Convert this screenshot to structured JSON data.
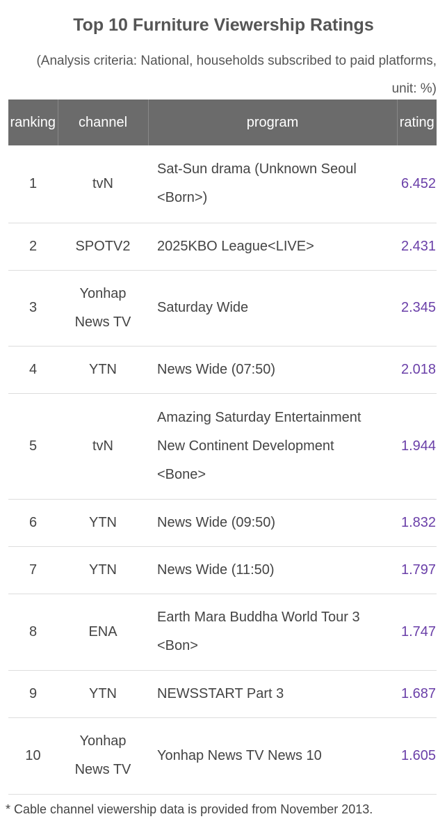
{
  "header": {
    "title": "Top 10 Furniture Viewership Ratings",
    "subtitle": "(Analysis criteria: National, households subscribed to paid platforms, unit: %)"
  },
  "table": {
    "columns": [
      "ranking",
      "channel",
      "program",
      "rating"
    ],
    "rows": [
      [
        "1",
        "tvN",
        "Sat-Sun drama (Unknown Seoul <Born>)",
        "6.452"
      ],
      [
        "2",
        "SPOTV2",
        "2025KBO League<LIVE>",
        "2.431"
      ],
      [
        "3",
        "Yonhap News TV",
        "Saturday Wide",
        "2.345"
      ],
      [
        "4",
        "YTN",
        "News Wide (07:50)",
        "2.018"
      ],
      [
        "5",
        "tvN",
        "Amazing Saturday Entertainment New Continent Development <Bone>",
        "1.944"
      ],
      [
        "6",
        "YTN",
        "News Wide (09:50)",
        "1.832"
      ],
      [
        "7",
        "YTN",
        "News Wide (11:50)",
        "1.797"
      ],
      [
        "8",
        "ENA",
        "Earth Mara Buddha World Tour 3 <Bon>",
        "1.747"
      ],
      [
        "9",
        "YTN",
        "NEWSSTART Part 3",
        "1.687"
      ],
      [
        "10",
        "Yonhap News TV",
        "Yonhap News TV News 10",
        "1.605"
      ]
    ]
  },
  "footnote": "* Cable channel viewership data is provided from November 2013."
}
